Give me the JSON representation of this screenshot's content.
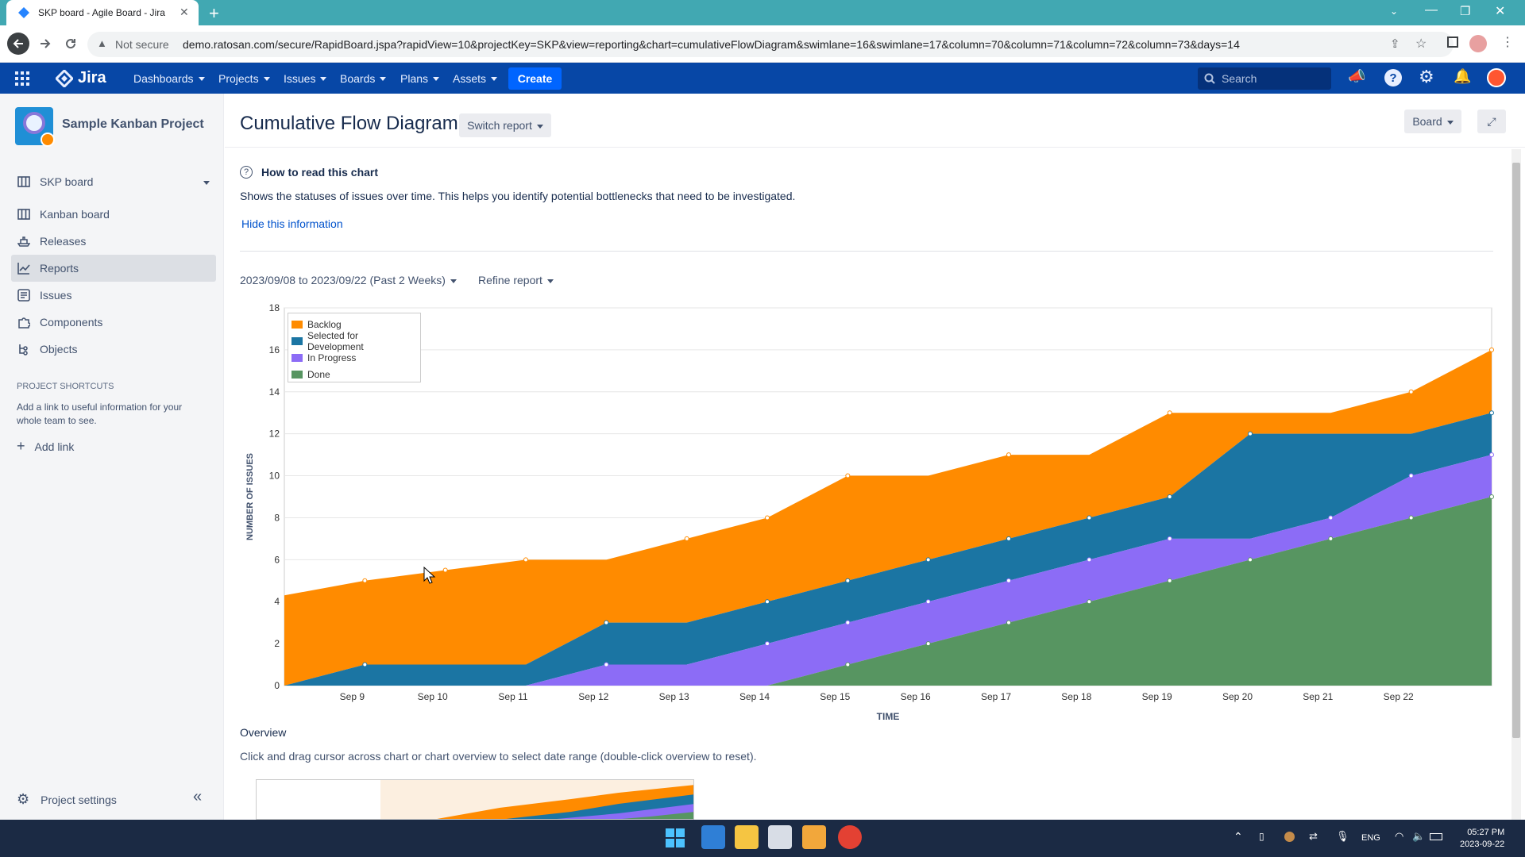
{
  "browser": {
    "tab_title": "SKP board - Agile Board - Jira",
    "security": "Not secure",
    "url": "demo.ratosan.com/secure/RapidBoard.jspa?rapidView=10&projectKey=SKP&view=reporting&chart=cumulativeFlowDiagram&swimlane=16&swimlane=17&column=70&column=71&column=72&column=73&days=14"
  },
  "nav": {
    "logo": "Jira",
    "items": [
      "Dashboards",
      "Projects",
      "Issues",
      "Boards",
      "Plans",
      "Assets"
    ],
    "create": "Create",
    "search_placeholder": "Search"
  },
  "sidebar": {
    "project_name": "Sample Kanban Project",
    "board": "SKP board",
    "items": [
      "Kanban board",
      "Releases",
      "Reports",
      "Issues",
      "Components",
      "Objects"
    ],
    "active": "Reports",
    "shortcuts_title": "PROJECT SHORTCUTS",
    "shortcuts_desc": "Add a link to useful information for your whole team to see.",
    "add_link": "Add link",
    "settings": "Project settings"
  },
  "main": {
    "title": "Cumulative Flow Diagram",
    "switch_report": "Switch report",
    "board_dropdown": "Board",
    "info_title": "How to read this chart",
    "info_text": "Shows the statuses of issues over time. This helps you identify potential bottlenecks that need to be investigated.",
    "hide_info": "Hide this information",
    "date_range": "2023/09/08 to 2023/09/22 (Past 2 Weeks)",
    "refine": "Refine report",
    "overview_title": "Overview",
    "overview_desc": "Click and drag cursor across chart or chart overview to select date range (double-click overview to reset)."
  },
  "chart_data": {
    "type": "area",
    "stacked": true,
    "xlabel": "TIME",
    "ylabel": "NUMBER OF ISSUES",
    "ylim": [
      0,
      18
    ],
    "yticks": [
      0,
      2,
      4,
      6,
      8,
      10,
      12,
      14,
      16,
      18
    ],
    "x_tick_labels": [
      "Sep 9",
      "Sep 10",
      "Sep 11",
      "Sep 12",
      "Sep 13",
      "Sep 14",
      "Sep 15",
      "Sep 16",
      "Sep 17",
      "Sep 18",
      "Sep 19",
      "Sep 20",
      "Sep 21",
      "Sep 22"
    ],
    "legend_position": "top-left",
    "x": [
      "2023-09-08",
      "2023-09-09",
      "2023-09-10",
      "2023-09-11",
      "2023-09-12",
      "2023-09-13",
      "2023-09-14",
      "2023-09-15",
      "2023-09-16",
      "2023-09-17",
      "2023-09-18",
      "2023-09-19",
      "2023-09-20",
      "2023-09-21",
      "2023-09-22",
      "2023-09-23"
    ],
    "series": [
      {
        "name": "Backlog",
        "color": "#ff8b00",
        "cumulative": [
          4.3,
          5,
          5.5,
          6,
          6,
          7,
          8,
          10,
          10,
          11,
          11,
          13,
          13,
          13,
          14,
          16
        ]
      },
      {
        "name": "Selected for Development",
        "color": "#1b75a3",
        "cumulative": [
          0,
          1,
          1,
          1,
          3,
          3,
          4,
          5,
          6,
          7,
          8,
          9,
          12,
          12,
          12,
          13
        ]
      },
      {
        "name": "In Progress",
        "color": "#8c6cf6",
        "cumulative": [
          0,
          0,
          0,
          0,
          1,
          1,
          2,
          3,
          4,
          5,
          6,
          7,
          7,
          8,
          10,
          11
        ]
      },
      {
        "name": "Done",
        "color": "#579561",
        "cumulative": [
          0,
          0,
          0,
          0,
          0,
          0,
          0,
          1,
          2,
          3,
          4,
          5,
          6,
          7,
          8,
          9
        ]
      }
    ]
  },
  "taskbar": {
    "lang": "ENG",
    "time": "05:27 PM",
    "date": "2023-09-22"
  }
}
